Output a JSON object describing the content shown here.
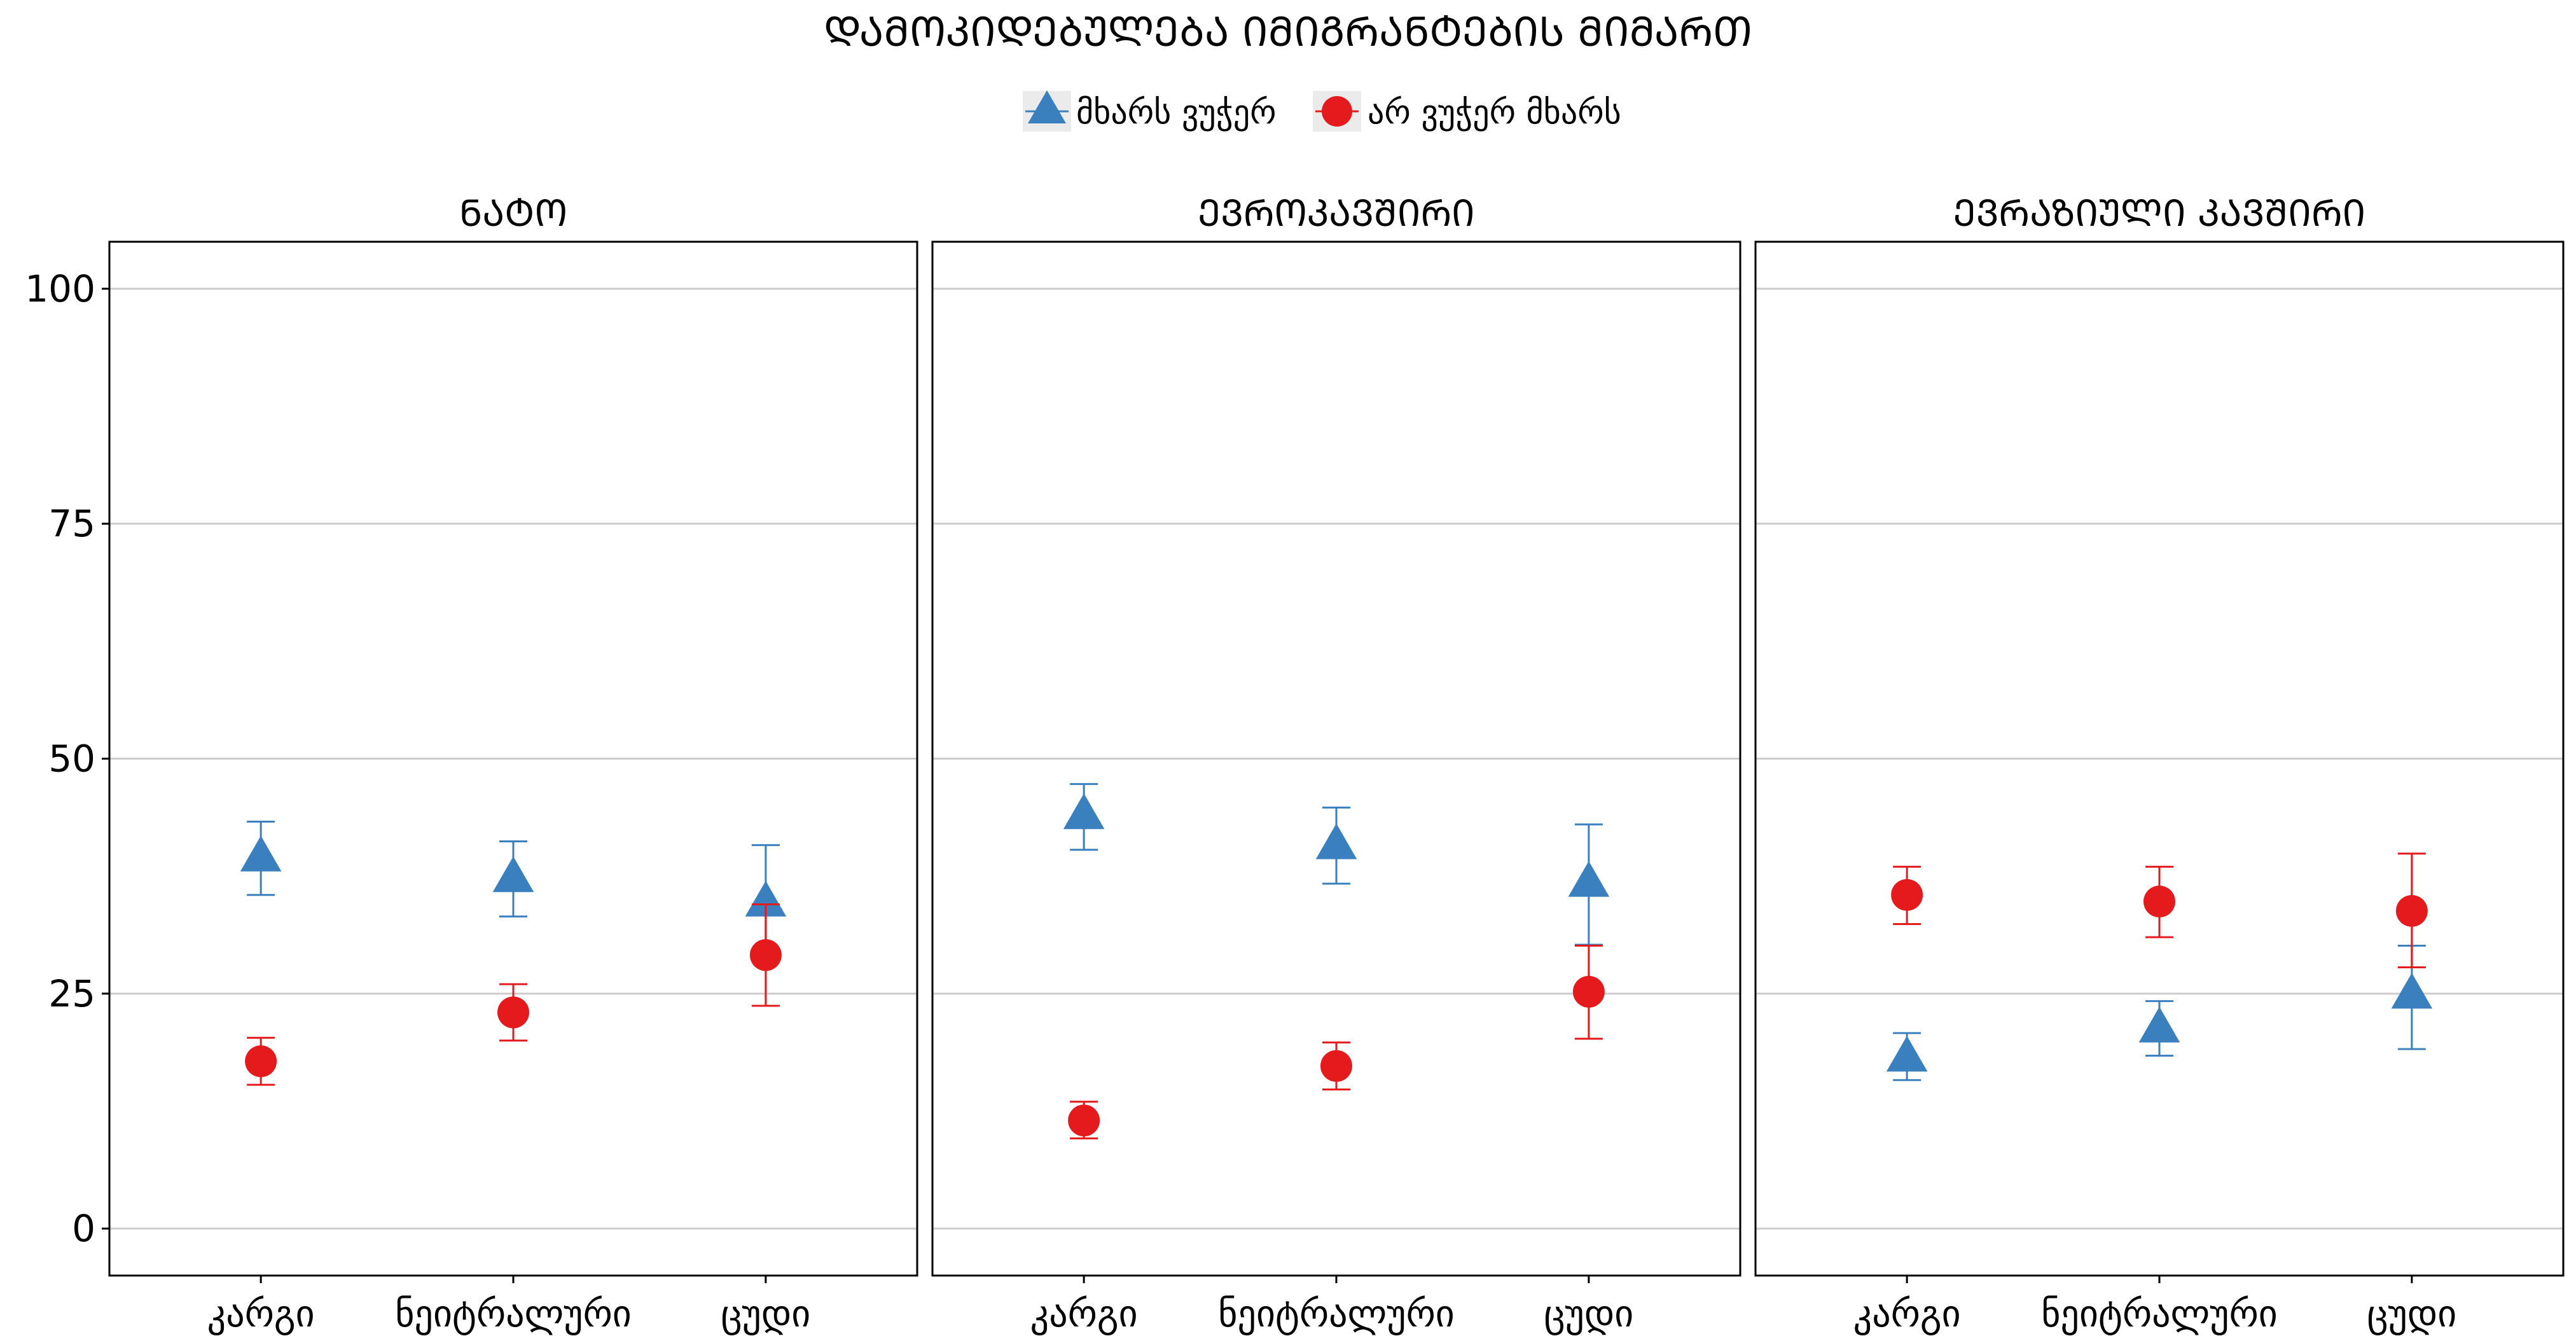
{
  "chart_data": {
    "type": "scatter",
    "title": "ᲓᲐᲛᲝᲙᲘᲓᲔᲑᲣᲚᲔᲑᲐ ᲘᲛᲘᲒᲠᲐᲜᲢᲔᲑᲘᲡ ᲛᲘᲛᲐᲠᲗ",
    "legend": {
      "placement": "top",
      "items": [
        {
          "label": "მხარს ვუჭერ",
          "marker": "triangle",
          "color": "#3A7FBE"
        },
        {
          "label": "არ ვუჭერ მხარს",
          "marker": "circle",
          "color": "#E41A1C"
        }
      ]
    },
    "categories": [
      "კარგი",
      "ნეიტრალური",
      "ცუდი"
    ],
    "ylim": [
      -5,
      105
    ],
    "yticks": [
      0,
      25,
      50,
      75,
      100
    ],
    "grid": true,
    "panels": [
      {
        "title": "ᲜᲐᲢᲝ",
        "series": [
          {
            "name": "მხარს ვუჭერ",
            "values": [
              39.5,
              37.3,
              34.7
            ],
            "lower": [
              35.5,
              33.2,
              28.5
            ],
            "upper": [
              43.3,
              41.2,
              40.8
            ]
          },
          {
            "name": "არ ვუჭერ მხარს",
            "values": [
              17.8,
              23.0,
              29.1
            ],
            "lower": [
              15.3,
              20.0,
              23.7
            ],
            "upper": [
              20.3,
              26.0,
              34.5
            ]
          }
        ]
      },
      {
        "title": "ᲔᲕᲠᲝᲙᲐᲕᲨᲘᲠᲘ",
        "series": [
          {
            "name": "მხარს ვუჭერ",
            "values": [
              44.0,
              40.8,
              36.8
            ],
            "lower": [
              40.3,
              36.7,
              30.2
            ],
            "upper": [
              47.3,
              44.8,
              43.0
            ]
          },
          {
            "name": "არ ვუჭერ მხარს",
            "values": [
              11.5,
              17.3,
              25.2
            ],
            "lower": [
              9.6,
              14.8,
              20.2
            ],
            "upper": [
              13.5,
              19.8,
              30.1
            ]
          }
        ]
      },
      {
        "title": "ᲔᲕᲠᲐᲖᲘᲣᲚᲘ ᲙᲐᲕᲨᲘᲠᲘ",
        "series": [
          {
            "name": "მხარს ვუჭერ",
            "values": [
              18.2,
              21.3,
              24.9
            ],
            "lower": [
              15.8,
              18.4,
              19.1
            ],
            "upper": [
              20.8,
              24.2,
              30.1
            ]
          },
          {
            "name": "არ ვუჭერ მხარს",
            "values": [
              35.5,
              34.8,
              33.8
            ],
            "lower": [
              32.4,
              31.0,
              27.8
            ],
            "upper": [
              38.5,
              38.5,
              39.9
            ]
          }
        ]
      }
    ]
  }
}
